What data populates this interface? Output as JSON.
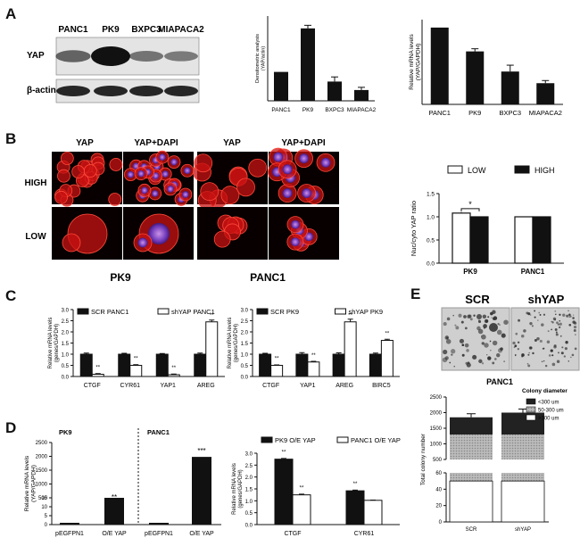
{
  "panels": {
    "A": "A",
    "B": "B",
    "C": "C",
    "D": "D",
    "E": "E"
  },
  "blot": {
    "lanes": [
      "PANC1",
      "PK9",
      "BXPC3",
      "MIAPACA2"
    ],
    "rows": [
      "YAP",
      "β-actin"
    ],
    "yap_intensity": [
      0.4,
      1.0,
      0.28,
      0.24
    ],
    "actin_intensity": [
      0.9,
      0.9,
      0.9,
      0.9
    ]
  },
  "micro": {
    "cols": [
      "YAP",
      "YAP+DAPI",
      "YAP",
      "YAP+DAPI"
    ],
    "rows": [
      "HIGH",
      "LOW"
    ],
    "groups": [
      "PK9",
      "PANC1"
    ]
  },
  "colony": {
    "labels": [
      "SCR",
      "shYAP"
    ],
    "group": "PANC1"
  },
  "chart_data": [
    {
      "id": "A-densitometric",
      "type": "bar",
      "categories": [
        "PANC1",
        "PK9",
        "BXPC3",
        "MIAPACA2"
      ],
      "values": [
        0.75,
        1.88,
        0.5,
        0.28
      ],
      "errors": [
        0.0,
        0.08,
        0.12,
        0.07
      ],
      "ylim": [
        0,
        2.2
      ],
      "ylabel": "Densitometric analysis (YAP/actin)",
      "colors": [
        "#111111"
      ]
    },
    {
      "id": "A-mrna",
      "type": "bar",
      "categories": [
        "PANC1",
        "PK9",
        "BXPC3",
        "MIAPACA2"
      ],
      "values": [
        1.45,
        1.0,
        0.62,
        0.4
      ],
      "errors": [
        0.0,
        0.05,
        0.12,
        0.05
      ],
      "ylim": [
        0,
        1.6
      ],
      "ylabel": "Relative mRNA levels (YAP/GAPDH)",
      "colors": [
        "#111111"
      ]
    },
    {
      "id": "B-ratio",
      "type": "bar",
      "categories": [
        "PK9",
        "PANC1"
      ],
      "series": [
        {
          "name": "LOW",
          "values": [
            1.08,
            1.0
          ],
          "errors": [
            0.02,
            0.01
          ]
        },
        {
          "name": "HIGH",
          "values": [
            1.0,
            1.0
          ],
          "errors": [
            0.01,
            0.01
          ]
        }
      ],
      "yticks": [
        "0.0",
        "0.5",
        "1.0",
        "1.5"
      ],
      "ylim": [
        0,
        1.5
      ],
      "ylabel": "Nuc/cyto YAP ratio",
      "annotations": [
        "*"
      ],
      "legend": "top"
    },
    {
      "id": "C-panc1",
      "type": "bar",
      "categories": [
        "CTGF",
        "CYR61",
        "YAP1",
        "AREG"
      ],
      "series": [
        {
          "name": "SCR PANC1",
          "values": [
            1.0,
            1.0,
            1.0,
            1.0
          ],
          "errors": [
            0.05,
            0.04,
            0.03,
            0.05
          ]
        },
        {
          "name": "shYAP PANC1",
          "values": [
            0.1,
            0.5,
            0.08,
            2.45
          ],
          "errors": [
            0.03,
            0.03,
            0.03,
            0.08
          ]
        }
      ],
      "stars": [
        "**",
        "**",
        "**",
        "**"
      ],
      "yticks": [
        "0.0",
        "0.5",
        "1.0",
        "1.5",
        "2.0",
        "2.5",
        "3.0"
      ],
      "ylim": [
        0,
        3
      ],
      "ylabel": "Relative mRNA levels (genes/GAPDH)"
    },
    {
      "id": "C-pk9",
      "type": "bar",
      "categories": [
        "CTGF",
        "YAP1",
        "AREG",
        "BIRC5"
      ],
      "series": [
        {
          "name": "SCR PK9",
          "values": [
            1.0,
            1.0,
            1.0,
            1.0
          ],
          "errors": [
            0.04,
            0.07,
            0.06,
            0.05
          ]
        },
        {
          "name": "shYAP PK9",
          "values": [
            0.5,
            0.65,
            2.45,
            1.62
          ],
          "errors": [
            0.02,
            0.03,
            0.12,
            0.05
          ]
        }
      ],
      "stars": [
        "**",
        "**",
        "**",
        "**"
      ],
      "yticks": [
        "0.0",
        "0.5",
        "1.0",
        "1.5",
        "2.0",
        "2.5",
        "3.0"
      ],
      "ylim": [
        0,
        3
      ],
      "ylabel": "Relative mRNA levels (genes/GAPDH)"
    },
    {
      "id": "D-oe",
      "type": "bar",
      "groups": [
        "PK9",
        "PANC1"
      ],
      "categories": [
        "pEGFPN1",
        "O/E YAP",
        "pEGFPN1",
        "O/E YAP"
      ],
      "values": [
        1,
        310,
        1,
        1980
      ],
      "stars": [
        "",
        "**",
        "",
        "***"
      ],
      "yticks": [
        "0",
        "5",
        "10",
        "15",
        "500",
        "1000",
        "1500",
        "2000",
        "2500"
      ],
      "ylabel": "Relative mRNA levels (YAP/GAPDH)",
      "broken_axis": true
    },
    {
      "id": "D-targets",
      "type": "bar",
      "categories": [
        "CTGF",
        "CYR61"
      ],
      "series": [
        {
          "name": "PK9 O/E YAP",
          "values": [
            2.75,
            1.42
          ],
          "errors": [
            0.03,
            0.03
          ]
        },
        {
          "name": "PANC1 O/E YAP",
          "values": [
            1.25,
            1.02
          ],
          "errors": [
            0.03,
            0.01
          ]
        }
      ],
      "stars": [
        "**",
        "**",
        "**",
        ""
      ],
      "yticks": [
        "0.0",
        "0.5",
        "1.0",
        "1.5",
        "2.0",
        "2.5",
        "3.0"
      ],
      "ylim": [
        0,
        3
      ],
      "ylabel": "Relative mRNA levels (genes/GAPDH)"
    },
    {
      "id": "E-colony",
      "type": "bar",
      "categories": [
        "SCR",
        "shYAP"
      ],
      "stack": [
        {
          "name": "<300 um",
          "values": [
            1850,
            2000
          ]
        },
        {
          "name": "50-300 um",
          "values": [
            1300,
            1300
          ]
        },
        {
          "name": ">300 um",
          "values": [
            60,
            60
          ]
        }
      ],
      "legend_title": "Colony diameter",
      "yticks": [
        "0",
        "20",
        "40",
        "60",
        "500",
        "1000",
        "1500",
        "2000",
        "2500"
      ],
      "ylabel": "Total colony number",
      "broken_axis": true
    }
  ]
}
